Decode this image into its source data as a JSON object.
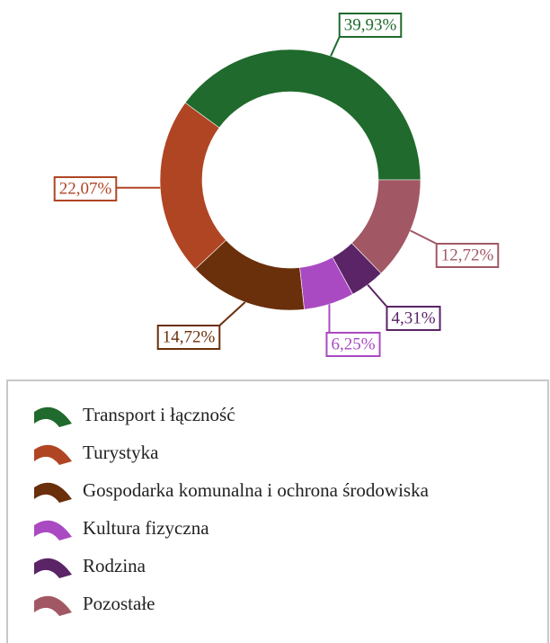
{
  "chart_data": {
    "type": "donut",
    "categories": [
      "Transport i łączność",
      "Turystyka",
      "Gospodarka komunalna i ochrona środowiska",
      "Kultura fizyczna",
      "Rodzina",
      "Pozostałe"
    ],
    "values": [
      39.93,
      22.07,
      14.72,
      6.25,
      4.31,
      12.72
    ],
    "value_labels": [
      "39,93%",
      "22,07%",
      "14,72%",
      "6,25%",
      "4,31%",
      "12,72%"
    ],
    "colors": [
      "#1f6a2c",
      "#b04524",
      "#6a2f0b",
      "#aa4ac2",
      "#5a2466",
      "#a25864"
    ],
    "legend": "bottom"
  }
}
